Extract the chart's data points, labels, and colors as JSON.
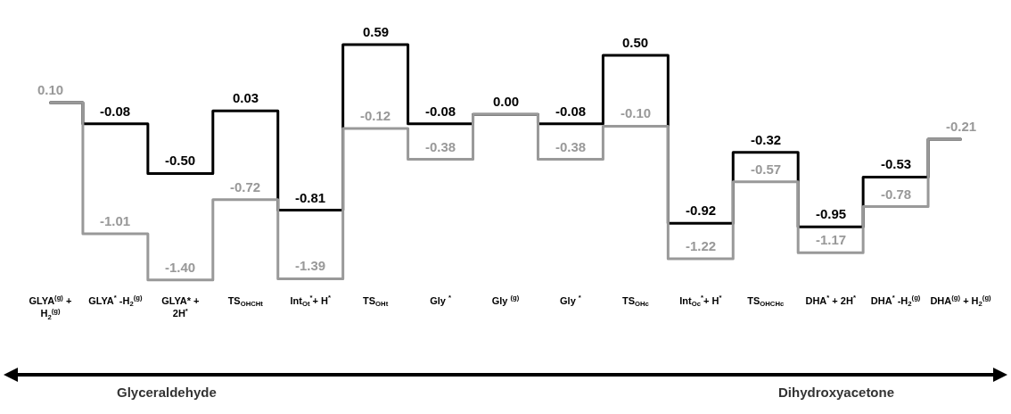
{
  "chart_data": {
    "type": "step",
    "categories": [
      "GLYA$^{(g)}$ + H$_{2}$$^{(g)}$",
      "GLYA$^{*}$ -H$_{2}$$^{(g)}$",
      "GLYA* + 2H$^{*}$",
      "TS$_{OHCHt}$",
      "Int$_{Ot}$$^{*}$+ H$^{*}$",
      "TS$_{OHt}$",
      "Gly $^{*}$",
      "Gly $^{(g)}$",
      "Gly $^{*}$",
      "TS$_{OHc}$",
      "Int$_{Oc}$$^{*}$+ H$^{*}$",
      "TS$_{OHCHc}$",
      "DHA$^{*}$ + 2H$^{*}$",
      "DHA$^{*}$ -H$_{2}$$^{(g)}$",
      "DHA$^{(g)}$ + H$_{2}$$^{(g)}$"
    ],
    "series": [
      {
        "color": "#000000",
        "values": [
          0.1,
          -0.08,
          -0.5,
          0.03,
          -0.81,
          0.59,
          -0.08,
          0.0,
          -0.08,
          0.5,
          -0.92,
          -0.32,
          -0.95,
          -0.53,
          -0.21
        ],
        "value_labels": [
          null,
          "-0.08",
          "-0.50",
          "0.03",
          "-0.81",
          "0.59",
          "-0.08",
          "0.00",
          "-0.08",
          "0.50",
          "-0.92",
          "-0.32",
          "-0.95",
          "-0.53",
          null
        ]
      },
      {
        "color": "#999999",
        "values": [
          0.1,
          -1.01,
          -1.4,
          -0.72,
          -1.39,
          -0.12,
          -0.38,
          0.0,
          -0.38,
          -0.1,
          -1.22,
          -0.57,
          -1.17,
          -0.78,
          -0.21
        ],
        "value_labels": [
          "0.10",
          "-1.01",
          "-1.40",
          "-0.72",
          "-1.39",
          "-0.12",
          "-0.38",
          null,
          "-0.38",
          "-0.10",
          "-1.22",
          "-0.57",
          "-1.17",
          "-0.78",
          "-0.21"
        ]
      }
    ],
    "tick_labels": "x",
    "grid": false,
    "marker": "none",
    "line_style": "solid",
    "annotations": [
      "Glyceraldehyde",
      "Dihydroxyacetone"
    ]
  }
}
